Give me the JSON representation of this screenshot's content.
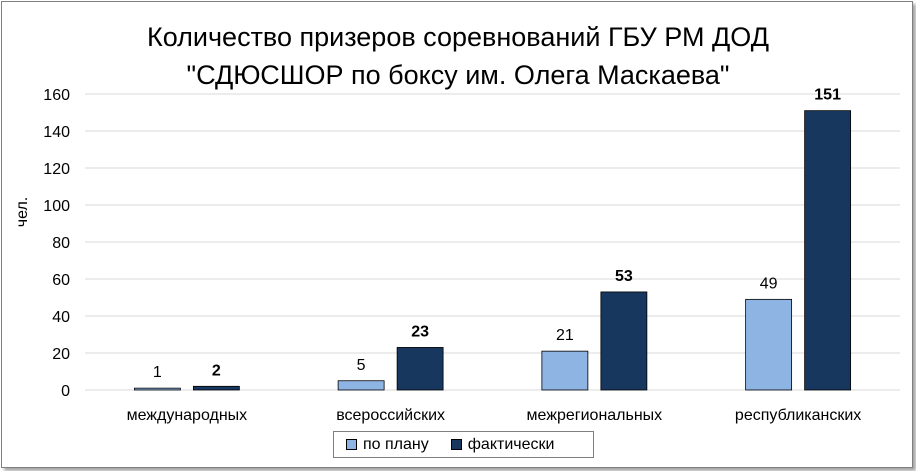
{
  "chart_data": {
    "type": "bar",
    "title_line1": "Количество призеров соревнований ГБУ РМ ДОД",
    "title_line2": "\"СДЮСШОР по боксу им. Олега Маскаева\"",
    "ylabel": "чел.",
    "xlabel": "",
    "ylim": [
      0,
      160
    ],
    "yticks": [
      0,
      20,
      40,
      60,
      80,
      100,
      120,
      140,
      160
    ],
    "grid": true,
    "legend_position": "bottom",
    "categories": [
      "международных",
      "всероссийских",
      "межрегиональных",
      "республиканских"
    ],
    "series": [
      {
        "name": "по плану",
        "values": [
          1,
          5,
          21,
          49
        ],
        "color": "#8eb4e3",
        "label_bold": false
      },
      {
        "name": "фактически",
        "values": [
          2,
          23,
          53,
          151
        ],
        "color": "#17375e",
        "label_bold": true
      }
    ]
  }
}
